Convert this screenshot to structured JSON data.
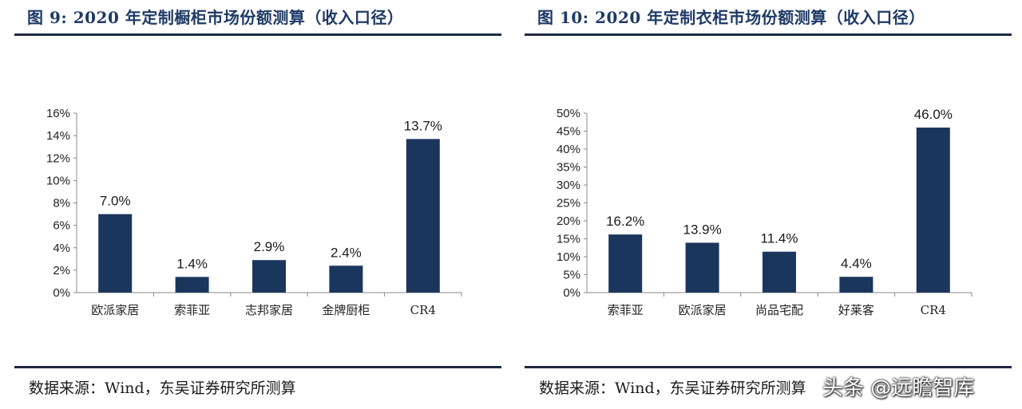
{
  "figures": [
    {
      "title": "图 9:  2020 年定制橱柜市场份额测算（收入口径）",
      "source": "数据来源：Wind，东吴证券研究所测算"
    },
    {
      "title": "图 10:  2020 年定制衣柜市场份额测算（收入口径）",
      "source": "数据来源：Wind，东吴证券研究所测算"
    }
  ],
  "watermark": "头条 @远瞻智库",
  "chart_data": [
    {
      "type": "bar",
      "categories": [
        "欧派家居",
        "索菲亚",
        "志邦家居",
        "金牌厨柜",
        "CR4"
      ],
      "values": [
        7.0,
        1.4,
        2.9,
        2.4,
        13.7
      ],
      "value_labels": [
        "7.0%",
        "1.4%",
        "2.9%",
        "2.4%",
        "13.7%"
      ],
      "y_ticks": [
        "0%",
        "2%",
        "4%",
        "6%",
        "8%",
        "10%",
        "12%",
        "14%",
        "16%"
      ],
      "ylim": [
        0,
        16
      ],
      "y_step": 2,
      "bar_color": "#1b365d",
      "grid": false,
      "legend": "none"
    },
    {
      "type": "bar",
      "categories": [
        "索菲亚",
        "欧派家居",
        "尚品宅配",
        "好莱客",
        "CR4"
      ],
      "values": [
        16.2,
        13.9,
        11.4,
        4.4,
        46.0
      ],
      "value_labels": [
        "16.2%",
        "13.9%",
        "11.4%",
        "4.4%",
        "46.0%"
      ],
      "y_ticks": [
        "0%",
        "5%",
        "10%",
        "15%",
        "20%",
        "25%",
        "30%",
        "35%",
        "40%",
        "45%",
        "50%"
      ],
      "ylim": [
        0,
        50
      ],
      "y_step": 5,
      "bar_color": "#1b365d",
      "grid": false,
      "legend": "none"
    }
  ]
}
